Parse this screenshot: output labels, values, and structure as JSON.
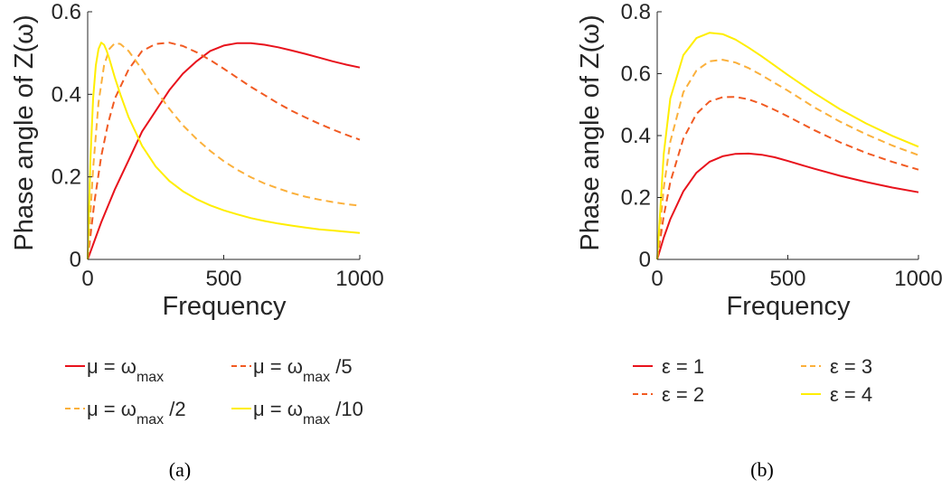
{
  "chart_data": [
    {
      "type": "line",
      "caption": "(a)",
      "xlabel": "Frequency",
      "ylabel": "Phase angle of Z(ω)",
      "xlim": [
        0,
        1000
      ],
      "ylim": [
        0,
        0.6
      ],
      "xticks": [
        "0",
        "500",
        "1000"
      ],
      "yticks": [
        "0",
        "0.2",
        "0.4",
        "0.6"
      ],
      "grid": false,
      "legend_position": "below",
      "series": [
        {
          "name": "μ = ω_max",
          "color": "#e8121c",
          "dash": "solid",
          "x": [
            0,
            50,
            100,
            150,
            200,
            250,
            300,
            350,
            400,
            450,
            500,
            550,
            600,
            650,
            700,
            750,
            800,
            850,
            900,
            950,
            1000
          ],
          "y": [
            0,
            0.09,
            0.17,
            0.24,
            0.31,
            0.36,
            0.41,
            0.45,
            0.48,
            0.505,
            0.518,
            0.524,
            0.524,
            0.52,
            0.514,
            0.506,
            0.498,
            0.489,
            0.48,
            0.472,
            0.465
          ]
        },
        {
          "name": "μ = ω_max /2",
          "color": "#f15a22",
          "dash": "dashed",
          "x": [
            0,
            25,
            50,
            75,
            100,
            150,
            200,
            250,
            300,
            350,
            400,
            450,
            500,
            550,
            600,
            650,
            700,
            750,
            800,
            850,
            900,
            950,
            1000
          ],
          "y": [
            0,
            0.14,
            0.25,
            0.33,
            0.39,
            0.46,
            0.505,
            0.522,
            0.525,
            0.517,
            0.502,
            0.483,
            0.462,
            0.44,
            0.418,
            0.398,
            0.378,
            0.36,
            0.344,
            0.329,
            0.315,
            0.302,
            0.29
          ]
        },
        {
          "name": "μ = ω_max /5",
          "color": "#fbb03b",
          "dash": "dashed",
          "x": [
            0,
            20,
            40,
            60,
            80,
            100,
            120,
            150,
            200,
            250,
            300,
            350,
            400,
            450,
            500,
            550,
            600,
            650,
            700,
            750,
            800,
            850,
            900,
            950,
            1000
          ],
          "y": [
            0,
            0.22,
            0.38,
            0.47,
            0.51,
            0.524,
            0.522,
            0.505,
            0.46,
            0.41,
            0.365,
            0.325,
            0.292,
            0.263,
            0.238,
            0.217,
            0.199,
            0.184,
            0.172,
            0.161,
            0.152,
            0.145,
            0.139,
            0.134,
            0.13
          ]
        },
        {
          "name": "μ = ω_max /10",
          "color": "#ffee00",
          "dash": "solid",
          "x": [
            0,
            10,
            20,
            30,
            40,
            50,
            60,
            70,
            80,
            100,
            120,
            150,
            200,
            250,
            300,
            350,
            400,
            450,
            500,
            550,
            600,
            650,
            700,
            750,
            800,
            850,
            900,
            950,
            1000
          ],
          "y": [
            0,
            0.24,
            0.39,
            0.47,
            0.51,
            0.525,
            0.52,
            0.505,
            0.485,
            0.44,
            0.4,
            0.345,
            0.275,
            0.225,
            0.19,
            0.165,
            0.146,
            0.131,
            0.119,
            0.109,
            0.1,
            0.093,
            0.087,
            0.082,
            0.077,
            0.073,
            0.07,
            0.067,
            0.064
          ]
        }
      ]
    },
    {
      "type": "line",
      "caption": "(b)",
      "xlabel": "Frequency",
      "ylabel": "Phase angle of Z(ω)",
      "xlim": [
        0,
        1000
      ],
      "ylim": [
        0,
        0.8
      ],
      "xticks": [
        "0",
        "500",
        "1000"
      ],
      "yticks": [
        "0",
        "0.2",
        "0.4",
        "0.6",
        "0.8"
      ],
      "grid": false,
      "legend_position": "below",
      "series": [
        {
          "name": "ε = 1",
          "color": "#e8121c",
          "dash": "solid",
          "x": [
            0,
            25,
            50,
            100,
            150,
            200,
            250,
            300,
            350,
            400,
            450,
            500,
            600,
            700,
            800,
            900,
            1000
          ],
          "y": [
            0,
            0.07,
            0.13,
            0.22,
            0.28,
            0.315,
            0.333,
            0.341,
            0.342,
            0.338,
            0.33,
            0.318,
            0.293,
            0.27,
            0.25,
            0.232,
            0.217
          ]
        },
        {
          "name": "ε = 2",
          "color": "#f15a22",
          "dash": "dashed",
          "x": [
            0,
            25,
            50,
            100,
            150,
            200,
            250,
            300,
            350,
            400,
            450,
            500,
            600,
            700,
            800,
            900,
            1000
          ],
          "y": [
            0,
            0.14,
            0.25,
            0.39,
            0.47,
            0.51,
            0.524,
            0.525,
            0.517,
            0.502,
            0.483,
            0.462,
            0.418,
            0.378,
            0.344,
            0.315,
            0.29
          ]
        },
        {
          "name": "ε = 3",
          "color": "#fbb03b",
          "dash": "dashed",
          "x": [
            0,
            25,
            50,
            100,
            150,
            200,
            250,
            300,
            350,
            400,
            450,
            500,
            600,
            700,
            800,
            900,
            1000
          ],
          "y": [
            0,
            0.23,
            0.38,
            0.54,
            0.61,
            0.64,
            0.645,
            0.636,
            0.618,
            0.595,
            0.57,
            0.545,
            0.492,
            0.445,
            0.404,
            0.368,
            0.337
          ]
        },
        {
          "name": "ε = 4",
          "color": "#ffee00",
          "dash": "solid",
          "x": [
            0,
            25,
            50,
            100,
            150,
            200,
            250,
            300,
            350,
            400,
            450,
            500,
            600,
            700,
            800,
            900,
            1000
          ],
          "y": [
            0,
            0.34,
            0.52,
            0.66,
            0.715,
            0.732,
            0.728,
            0.71,
            0.684,
            0.656,
            0.626,
            0.596,
            0.538,
            0.485,
            0.439,
            0.399,
            0.364
          ]
        }
      ]
    }
  ],
  "legend_a": {
    "items": [
      {
        "main": "μ = ω",
        "sub": "max",
        "suffix": ""
      },
      {
        "main": "μ = ω",
        "sub": "max",
        "suffix": " /5"
      },
      {
        "main": "μ = ω",
        "sub": "max",
        "suffix": " /2"
      },
      {
        "main": "μ = ω",
        "sub": "max",
        "suffix": " /10"
      }
    ]
  },
  "legend_b": {
    "items": [
      {
        "main": "ε = 1"
      },
      {
        "main": "ε = 3"
      },
      {
        "main": "ε = 2"
      },
      {
        "main": "ε = 4"
      }
    ]
  },
  "captions": {
    "a": "(a)",
    "b": "(b)"
  }
}
